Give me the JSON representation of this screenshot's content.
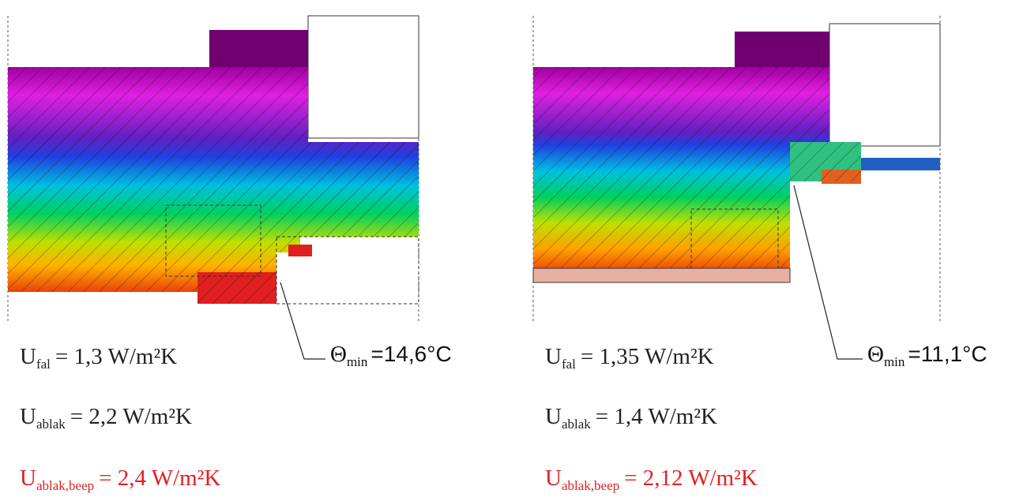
{
  "panels": [
    {
      "theta": {
        "symbol": "Θ",
        "sub": "min",
        "text": "=14,6°C"
      },
      "values": [
        {
          "symbol": "U",
          "sub": "fal",
          "text": "= 1,3 W/m²K",
          "color": "#222222"
        },
        {
          "symbol": "U",
          "sub": "ablak",
          "text": "= 2,2 W/m²K",
          "color": "#222222"
        },
        {
          "symbol": "U",
          "sub": "ablak,beep",
          "text": "= 2,4 W/m²K",
          "color": "#e02020"
        }
      ]
    },
    {
      "theta": {
        "symbol": "Θ",
        "sub": "min",
        "text": "=11,1°C"
      },
      "values": [
        {
          "symbol": "U",
          "sub": "fal",
          "text": "= 1,35 W/m²K",
          "color": "#222222"
        },
        {
          "symbol": "U",
          "sub": "ablak",
          "text": "= 1,4 W/m²K",
          "color": "#222222"
        },
        {
          "symbol": "U",
          "sub": "ablak,beep",
          "text": "= 2,12 W/m²K",
          "color": "#e02020"
        }
      ]
    }
  ]
}
